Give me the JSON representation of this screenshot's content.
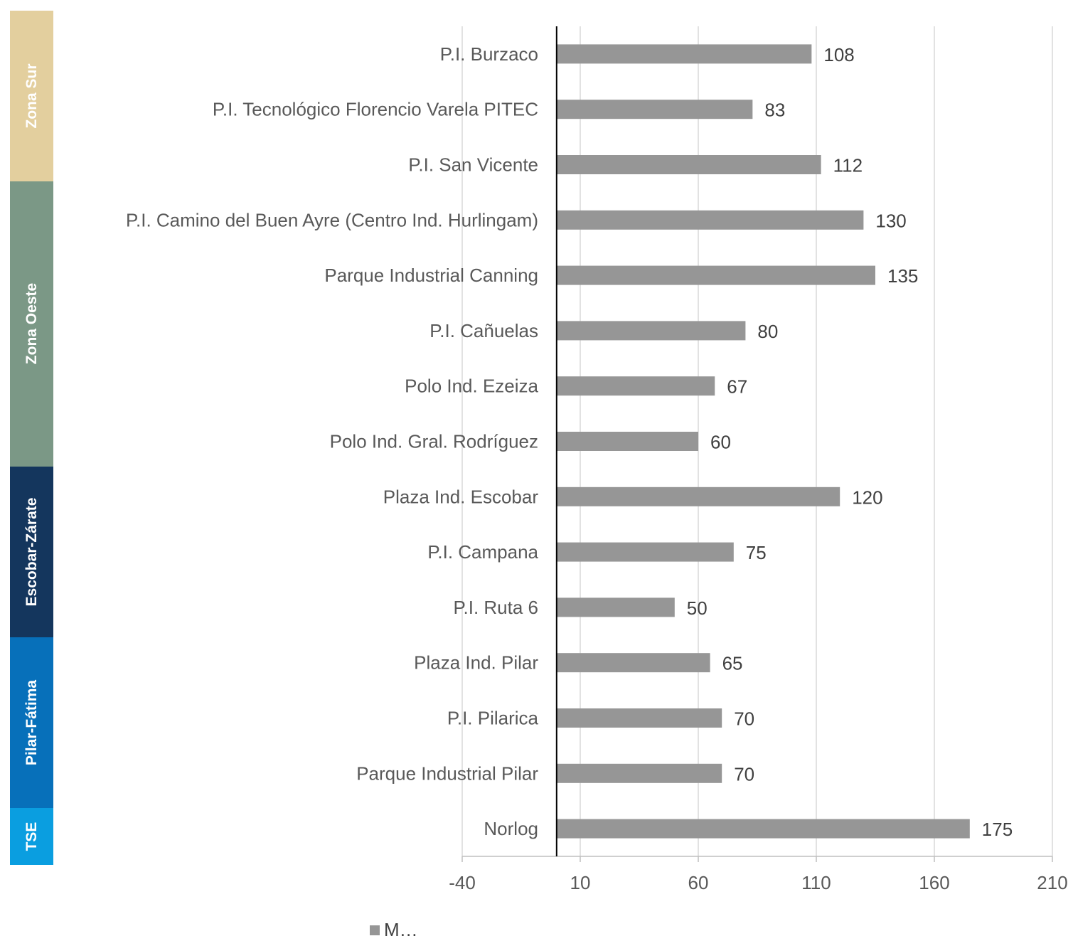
{
  "chart_data": {
    "type": "bar",
    "orientation": "horizontal",
    "categories": [
      "P.I. Burzaco",
      "P.I. Tecnológico Florencio Varela PITEC",
      "P.I. San Vicente",
      "P.I. Camino del Buen Ayre (Centro Ind. Hurlingam)",
      "Parque Industrial Canning",
      "P.I. Cañuelas",
      "Polo Ind. Ezeiza",
      "Polo Ind. Gral. Rodríguez",
      "Plaza Ind. Escobar",
      "P.I. Campana",
      "P.I. Ruta 6",
      "Plaza Ind. Pilar ",
      "P.I. Pilarica",
      "Parque Industrial Pilar",
      "Norlog"
    ],
    "series": [
      {
        "name": "M…",
        "values": [
          108,
          83,
          112,
          130,
          135,
          80,
          67,
          60,
          120,
          75,
          50,
          65,
          70,
          70,
          175
        ]
      }
    ],
    "data_labels": [
      "108",
      "83",
      "112",
      "130",
      "135",
      "80",
      "67",
      "60",
      "120",
      "75",
      "50",
      "65",
      "70",
      "70",
      "175"
    ],
    "xlim": [
      -40,
      210
    ],
    "xticks": [
      -40,
      10,
      60,
      110,
      160,
      210
    ],
    "xtick_labels": [
      "-40",
      "10",
      "60",
      "110",
      "160",
      "210"
    ],
    "baseline": 0,
    "grid": "vertical",
    "legend_position": "bottom",
    "bar_color": "#969696",
    "groups": [
      {
        "label": "Zona Sur",
        "color": "#e3cf9e",
        "count": 3
      },
      {
        "label": "Zona Oeste",
        "color": "#7b9886",
        "count": 5
      },
      {
        "label": "Escobar-Zárate",
        "color": "#14365d",
        "count": 3
      },
      {
        "label": "Pilar-Fátima",
        "color": "#0770ba",
        "count": 3
      },
      {
        "label": "TSE",
        "color": "#0a9ee0",
        "count": 1
      }
    ]
  }
}
